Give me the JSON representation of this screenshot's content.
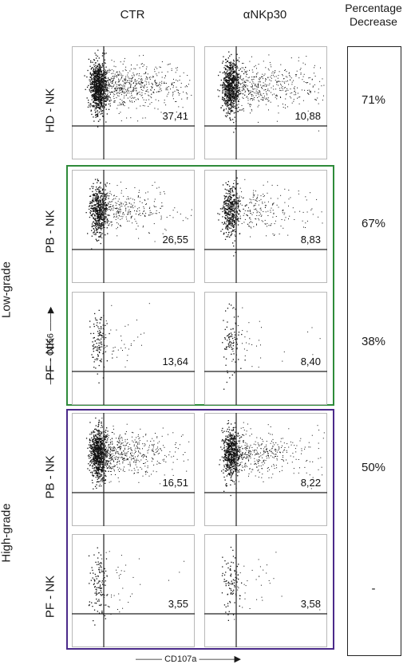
{
  "columns": [
    "CTR",
    "αNKp30"
  ],
  "percentage_header": "Percentage\nDecrease",
  "percentages": [
    "71%",
    "67%",
    "38%",
    "50%",
    "-"
  ],
  "rows": [
    {
      "label": "HD - NK",
      "ctr_value": "37,41",
      "ankp30_value": "10,88",
      "density": "high"
    },
    {
      "label": "PB - NK",
      "ctr_value": "26,55",
      "ankp30_value": "8,83",
      "density": "medium"
    },
    {
      "label": "PF - NK",
      "ctr_value": "13,64",
      "ankp30_value": "8,40",
      "density": "sparse"
    },
    {
      "label": "PB - NK",
      "ctr_value": "16,51",
      "ankp30_value": "8,22",
      "density": "medium-high"
    },
    {
      "label": "PF - NK",
      "ctr_value": "3,55",
      "ankp30_value": "3,58",
      "density": "sparse"
    }
  ],
  "groups": [
    {
      "label": "Low-grade",
      "color": "#2e8b3a"
    },
    {
      "label": "High-grade",
      "color": "#4b2a8a"
    }
  ],
  "axes": {
    "y": "CD56",
    "x": "CD107a"
  },
  "colors": {
    "panel_border": "#b8b8b8",
    "dots": "#111111",
    "quadrant": "#222222"
  }
}
